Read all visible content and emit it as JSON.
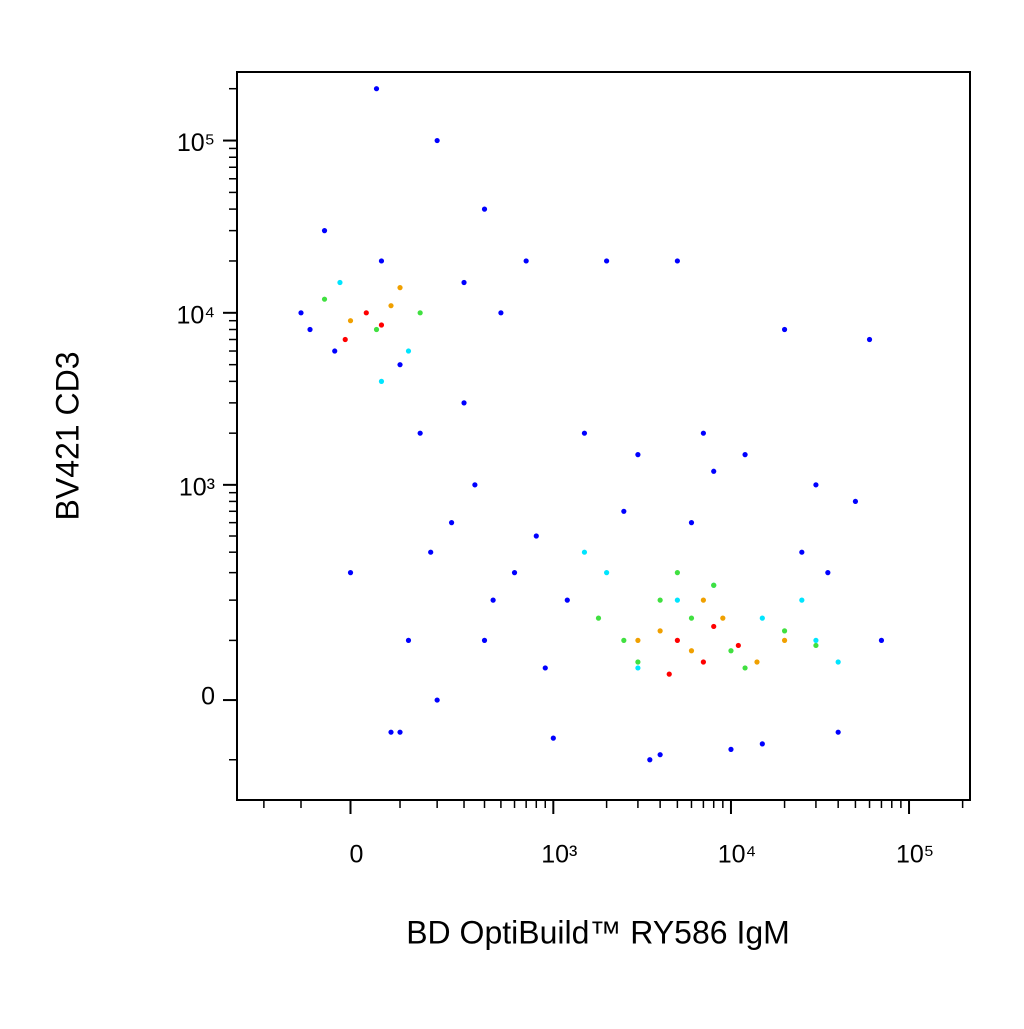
{
  "chart_data": {
    "type": "scatter",
    "xlabel": "BD OptiBuild™ RY586 IgM",
    "ylabel": "BV421 CD3",
    "xscale": "biexponential",
    "yscale": "biexponential",
    "xlim": [
      -300,
      220000
    ],
    "ylim": [
      -200,
      250000
    ],
    "xticks": [
      0,
      {
        "value": 1000,
        "label": "10³"
      },
      {
        "value": 10000,
        "label": "10⁴"
      },
      {
        "value": 100000,
        "label": "10⁵"
      }
    ],
    "yticks": [
      0,
      {
        "value": 1000,
        "label": "10³"
      },
      {
        "value": 10000,
        "label": "10⁴"
      },
      {
        "value": 100000,
        "label": "10⁵"
      }
    ],
    "xminorticks": [
      -200,
      -100,
      100,
      200,
      300,
      400,
      500,
      600,
      700,
      800,
      900,
      2000,
      3000,
      4000,
      5000,
      6000,
      7000,
      8000,
      9000,
      20000,
      30000,
      40000,
      50000,
      60000,
      70000,
      80000,
      90000,
      200000
    ],
    "yminorticks": [
      -100,
      100,
      200,
      300,
      400,
      500,
      600,
      700,
      800,
      900,
      2000,
      3000,
      4000,
      5000,
      6000,
      7000,
      8000,
      9000,
      20000,
      30000,
      40000,
      50000,
      60000,
      70000,
      80000,
      90000,
      200000
    ],
    "series": [
      {
        "color": "#0000ff",
        "x": [
          -100,
          50,
          200,
          400,
          -50,
          300,
          100,
          150,
          500,
          700,
          2000,
          5000,
          20000,
          60000,
          1500,
          3000,
          8000,
          30000,
          50000,
          800,
          600,
          1200,
          400,
          200,
          100,
          -80,
          60,
          300,
          250,
          10000,
          4000,
          1000,
          15000,
          40000,
          70000,
          2500,
          6000,
          25000,
          900,
          12000,
          0,
          120,
          350,
          450,
          80,
          180,
          -30,
          7000,
          35000,
          3500
        ],
        "y": [
          10000,
          200000,
          100000,
          40000,
          30000,
          15000,
          5000,
          2000,
          10000,
          20000,
          20000,
          20000,
          8000,
          7000,
          2000,
          1500,
          1200,
          1000,
          800,
          500,
          300,
          200,
          100,
          0,
          -50,
          8000,
          20000,
          3000,
          600,
          -80,
          -90,
          -60,
          -70,
          -50,
          100,
          700,
          600,
          400,
          50,
          1500,
          300,
          100,
          1000,
          200,
          -50,
          400,
          6000,
          2000,
          300,
          -100
        ]
      },
      {
        "color": "#00e5ff",
        "x": [
          -20,
          120,
          2000,
          5000,
          15000,
          30000,
          1500,
          8000,
          3000,
          40000,
          60,
          25000
        ],
        "y": [
          15000,
          6000,
          300,
          200,
          150,
          100,
          400,
          250,
          50,
          60,
          4000,
          200
        ]
      },
      {
        "color": "#40e040",
        "x": [
          -50,
          50,
          150,
          2500,
          4000,
          6000,
          10000,
          20000,
          3000,
          8000,
          12000,
          1800,
          30000,
          5000
        ],
        "y": [
          12000,
          8000,
          10000,
          100,
          200,
          150,
          80,
          120,
          60,
          250,
          50,
          150,
          90,
          300
        ]
      },
      {
        "color": "#f0a000",
        "x": [
          0,
          80,
          4000,
          6000,
          9000,
          14000,
          3000,
          7000,
          20000,
          100
        ],
        "y": [
          9000,
          11000,
          120,
          80,
          150,
          60,
          100,
          200,
          100,
          14000
        ]
      },
      {
        "color": "#ff0000",
        "x": [
          30,
          -10,
          5000,
          7000,
          8000,
          11000,
          4500,
          60
        ],
        "y": [
          10000,
          7000,
          100,
          60,
          130,
          90,
          40,
          8500
        ]
      }
    ]
  }
}
